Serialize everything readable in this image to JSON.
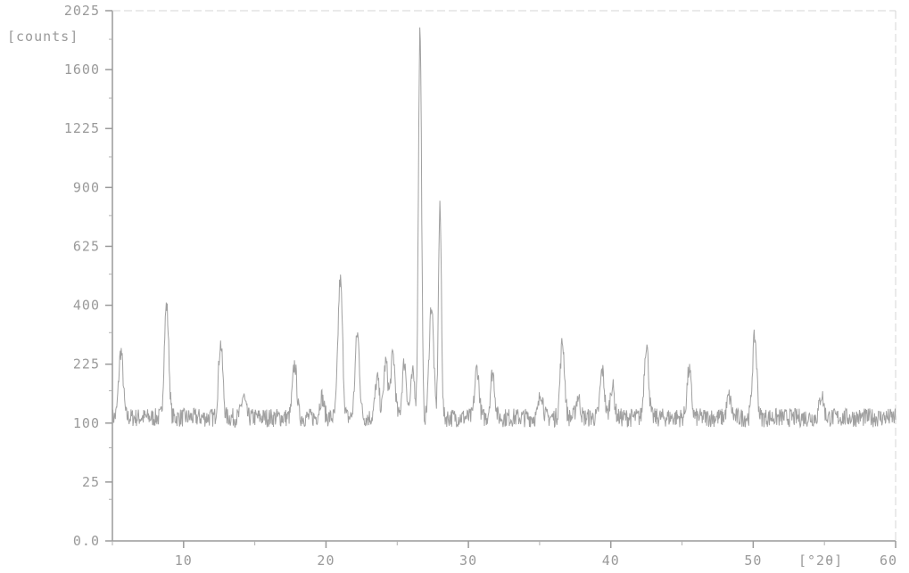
{
  "chart_data": {
    "type": "line",
    "title": "",
    "xlabel": "[°2θ]",
    "ylabel": "[counts]",
    "xlim": [
      5,
      60
    ],
    "ylim": [
      0,
      2025
    ],
    "y_scale": "sqrt",
    "grid": false,
    "legend": "none",
    "colors": {
      "line": "#a0a0a0",
      "axis": "#9a9a9a",
      "text": "#9a9a9a",
      "background": "#ffffff"
    },
    "x_ticks": [
      {
        "value": 10,
        "label": "10"
      },
      {
        "value": 20,
        "label": "20"
      },
      {
        "value": 30,
        "label": "30"
      },
      {
        "value": 40,
        "label": "40"
      },
      {
        "value": 50,
        "label": "50"
      },
      {
        "value": 60,
        "label": "60"
      }
    ],
    "y_ticks": [
      {
        "value": 0,
        "label": "0.0"
      },
      {
        "value": 25,
        "label": "25"
      },
      {
        "value": 100,
        "label": "100"
      },
      {
        "value": 225,
        "label": "225"
      },
      {
        "value": 400,
        "label": "400"
      },
      {
        "value": 625,
        "label": "625"
      },
      {
        "value": 900,
        "label": "900"
      },
      {
        "value": 1225,
        "label": "1225"
      },
      {
        "value": 1600,
        "label": "1600"
      },
      {
        "value": 2025,
        "label": "2025"
      }
    ],
    "series": [
      {
        "baseline": 110,
        "peaks": [
          {
            "x": 5.6,
            "y": 260
          },
          {
            "x": 8.8,
            "y": 400
          },
          {
            "x": 12.6,
            "y": 280
          },
          {
            "x": 14.2,
            "y": 150
          },
          {
            "x": 17.8,
            "y": 225
          },
          {
            "x": 19.7,
            "y": 150
          },
          {
            "x": 21.0,
            "y": 490
          },
          {
            "x": 22.2,
            "y": 310
          },
          {
            "x": 23.6,
            "y": 190
          },
          {
            "x": 24.2,
            "y": 230
          },
          {
            "x": 24.7,
            "y": 250
          },
          {
            "x": 25.5,
            "y": 230
          },
          {
            "x": 26.1,
            "y": 200
          },
          {
            "x": 26.6,
            "y": 1880
          },
          {
            "x": 27.4,
            "y": 400
          },
          {
            "x": 28.0,
            "y": 790
          },
          {
            "x": 30.6,
            "y": 215
          },
          {
            "x": 31.7,
            "y": 205
          },
          {
            "x": 35.1,
            "y": 160
          },
          {
            "x": 36.6,
            "y": 285
          },
          {
            "x": 37.7,
            "y": 150
          },
          {
            "x": 39.4,
            "y": 210
          },
          {
            "x": 40.1,
            "y": 175
          },
          {
            "x": 42.5,
            "y": 280
          },
          {
            "x": 45.5,
            "y": 210
          },
          {
            "x": 48.3,
            "y": 150
          },
          {
            "x": 50.1,
            "y": 300
          },
          {
            "x": 54.8,
            "y": 155
          }
        ]
      }
    ]
  }
}
